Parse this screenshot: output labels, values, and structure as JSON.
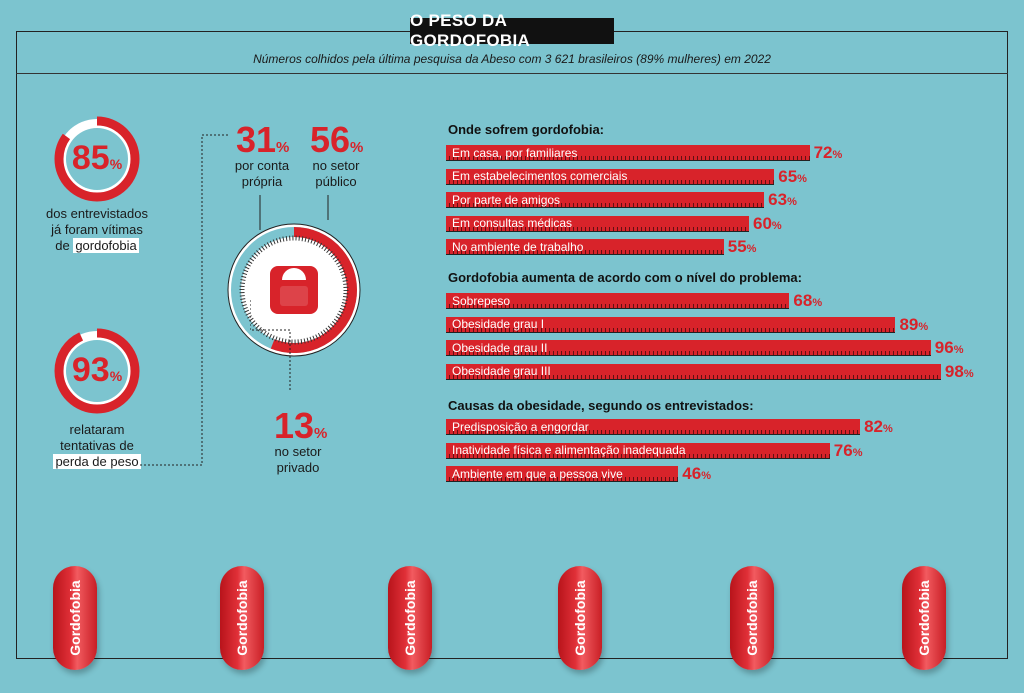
{
  "header": {
    "title": "O PESO DA GORDOFOBIA",
    "subtitle": "Números colhidos pela última pesquisa da Abeso com 3 621 brasileiros (89% mulheres) em 2022"
  },
  "colors": {
    "accent": "#d8232a",
    "background": "#7cc4cf",
    "dark": "#111111"
  },
  "left_stats": [
    {
      "value": "85",
      "unit": "%",
      "percent": 85,
      "caption_lines": [
        "dos entrevistados",
        "já foram vítimas",
        "de"
      ],
      "highlight": "gordofobia"
    },
    {
      "value": "93",
      "unit": "%",
      "percent": 93,
      "caption_lines": [
        "relataram",
        "tentativas de"
      ],
      "highlight": "perda de peso"
    }
  ],
  "scale_icon": "scale-icon",
  "weight_loss": [
    {
      "value": "31",
      "unit": "%",
      "percent": 31,
      "caption_lines": [
        "por conta",
        "própria"
      ]
    },
    {
      "value": "56",
      "unit": "%",
      "percent": 56,
      "caption_lines": [
        "no setor",
        "público"
      ]
    },
    {
      "value": "13",
      "unit": "%",
      "percent": 13,
      "caption_lines": [
        "no setor",
        "privado"
      ]
    }
  ],
  "chart_data": [
    {
      "type": "bar",
      "title": "Onde sofrem gordofobia:",
      "categories": [
        "Em casa, por familiares",
        "Em estabelecimentos comerciais",
        "Por parte de amigos",
        "Em consultas médicas",
        "No ambiente de trabalho"
      ],
      "values": [
        72,
        65,
        63,
        60,
        55
      ],
      "unit": "%"
    },
    {
      "type": "bar",
      "title": "Gordofobia aumenta de acordo com o nível do problema:",
      "categories": [
        "Sobrepeso",
        "Obesidade grau I",
        "Obesidade grau II",
        "Obesidade grau III"
      ],
      "values": [
        68,
        89,
        96,
        98
      ],
      "unit": "%"
    },
    {
      "type": "bar",
      "title": "Causas da obesidade, segundo os entrevistados:",
      "categories": [
        "Predisposição a engordar",
        "Inatividade física e alimentação inadequada",
        "Ambiente em que a pessoa vive"
      ],
      "values": [
        82,
        76,
        46
      ],
      "unit": "%"
    }
  ],
  "pills": [
    "Gordofobia",
    "Gordofobia",
    "Gordofobia",
    "Gordofobia",
    "Gordofobia",
    "Gordofobia"
  ],
  "registered_mark": "®"
}
